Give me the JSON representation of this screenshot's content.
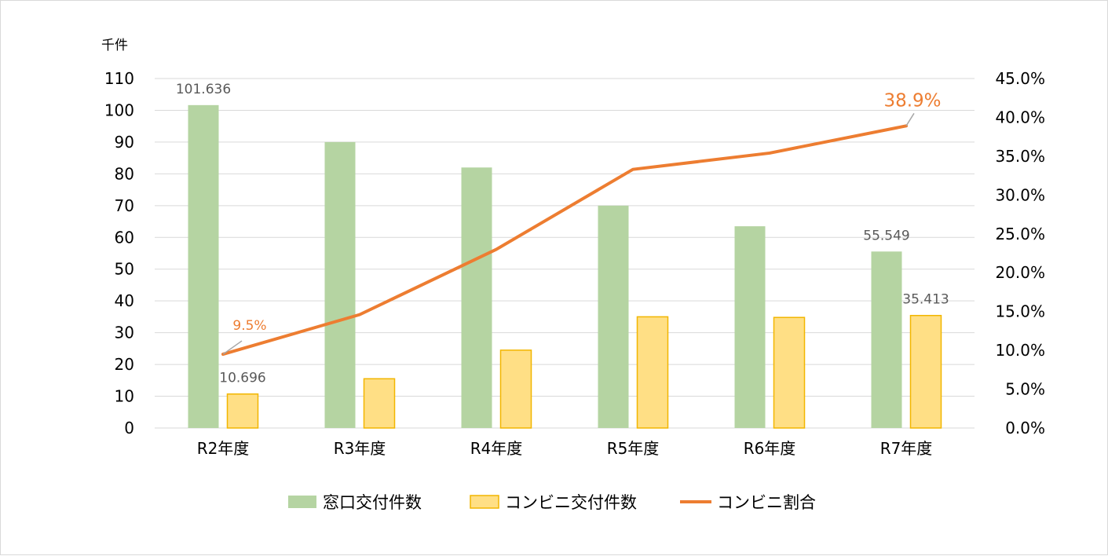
{
  "chart_data": {
    "type": "bar",
    "categories": [
      "R2年度",
      "R3年度",
      "R4年度",
      "R5年度",
      "R6年度",
      "R7年度"
    ],
    "y_unit": "千件",
    "ylim": [
      0,
      110
    ],
    "yticks": [
      "0",
      "10",
      "20",
      "30",
      "40",
      "50",
      "60",
      "70",
      "80",
      "90",
      "100",
      "110"
    ],
    "y2lim": [
      0,
      45
    ],
    "y2ticks": [
      "0.0%",
      "5.0%",
      "10.0%",
      "15.0%",
      "20.0%",
      "25.0%",
      "30.0%",
      "35.0%",
      "40.0%",
      "45.0%"
    ],
    "grid": true,
    "legend_position": "bottom",
    "series": [
      {
        "name": "窓口交付件数",
        "type": "bar",
        "axis": "left",
        "color": "#b5d4a2",
        "values": [
          101.636,
          90,
          82,
          70,
          63.5,
          55.549
        ],
        "labels": [
          {
            "index": 0,
            "text": "101.636"
          },
          {
            "index": 5,
            "text": "55.549"
          }
        ]
      },
      {
        "name": "コンビニ交付件数",
        "type": "bar",
        "axis": "left",
        "color": "#ffdf85",
        "border": "#f2b600",
        "values": [
          10.696,
          15.5,
          24.5,
          35,
          34.8,
          35.413
        ],
        "labels": [
          {
            "index": 0,
            "text": "10.696"
          },
          {
            "index": 5,
            "text": "35.413"
          }
        ]
      },
      {
        "name": "コンビニ割合",
        "type": "line",
        "axis": "right",
        "color": "#ed7d31",
        "values": [
          9.5,
          14.6,
          23.0,
          33.3,
          35.4,
          38.9
        ],
        "labels": [
          {
            "index": 0,
            "text": "9.5%"
          },
          {
            "index": 5,
            "text": "38.9%"
          }
        ]
      }
    ]
  }
}
